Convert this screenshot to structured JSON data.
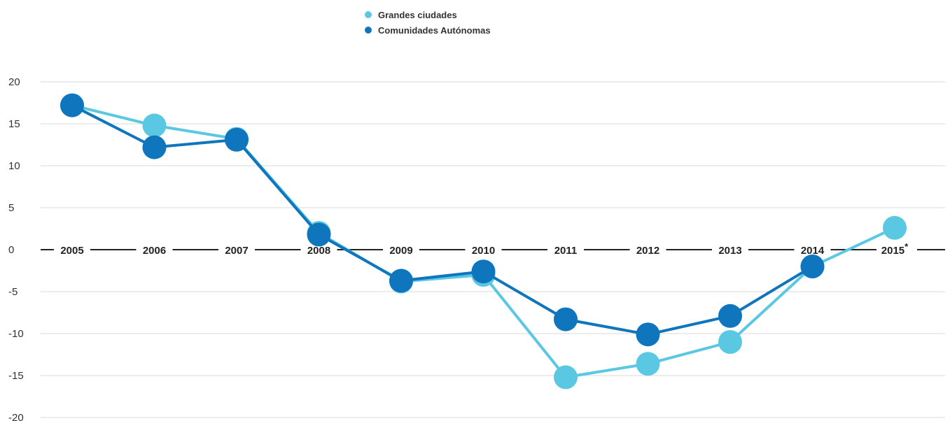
{
  "chart_data": {
    "type": "line",
    "title": "",
    "xlabel": "",
    "ylabel": "",
    "categories": [
      "2005",
      "2006",
      "2007",
      "2008",
      "2009",
      "2010",
      "2011",
      "2012",
      "2013",
      "2014",
      "2015"
    ],
    "category_marks": [
      "",
      "",
      "",
      "",
      "",
      "",
      "",
      "",
      "",
      "",
      "*"
    ],
    "ylim": [
      -20,
      20
    ],
    "yticks": [
      20,
      15,
      10,
      5,
      0,
      -5,
      -10,
      -15,
      -20
    ],
    "grid": true,
    "legend_position": "top-center",
    "series": [
      {
        "name": "Grandes ciudades",
        "color": "#5ac8e2",
        "values": [
          17.2,
          14.8,
          13.2,
          2.0,
          -3.8,
          -3.0,
          -15.2,
          -13.6,
          -11.0,
          -2.0,
          2.6
        ]
      },
      {
        "name": "Comunidades Autónomas",
        "color": "#0f75bc",
        "values": [
          17.2,
          12.2,
          13.1,
          1.8,
          -3.7,
          -2.6,
          -8.3,
          -10.1,
          -7.9,
          -2.0,
          null
        ]
      }
    ]
  }
}
